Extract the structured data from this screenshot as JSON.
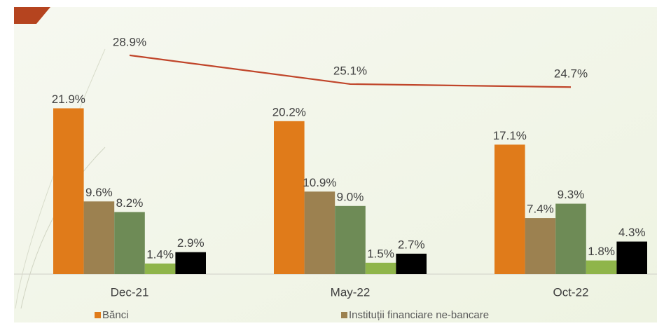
{
  "chart_data": {
    "type": "bar-line",
    "categories": [
      "Dec-21",
      "May-22",
      "Oct-22"
    ],
    "series": [
      {
        "name": "Bănci",
        "type": "bar",
        "color": "#e07b1a",
        "values": [
          21.9,
          20.2,
          17.1
        ],
        "value_labels": [
          "21.9%",
          "20.2%",
          "17.1%"
        ]
      },
      {
        "name": "Instituții financiare ne-bancare",
        "type": "bar",
        "color": "#9c8150",
        "values": [
          9.6,
          10.9,
          7.4
        ],
        "value_labels": [
          "9.6%",
          "10.9%",
          "7.4%"
        ]
      },
      {
        "type": "bar",
        "color": "#6e8b56",
        "values": [
          8.2,
          9.0,
          9.3
        ],
        "value_labels": [
          "8.2%",
          "9.0%",
          "9.3%"
        ]
      },
      {
        "type": "bar",
        "color": "#8fb54a",
        "values": [
          1.4,
          1.5,
          1.8
        ],
        "value_labels": [
          "1.4%",
          "1.5%",
          "1.8%"
        ]
      },
      {
        "type": "bar",
        "color": "#000000",
        "values": [
          2.9,
          2.7,
          4.3
        ],
        "value_labels": [
          "2.9%",
          "2.7%",
          "4.3%"
        ]
      },
      {
        "type": "line",
        "color": "#c0452a",
        "values": [
          28.9,
          25.1,
          24.7
        ],
        "value_labels": [
          "28.9%",
          "25.1%",
          "24.7%"
        ]
      }
    ]
  }
}
